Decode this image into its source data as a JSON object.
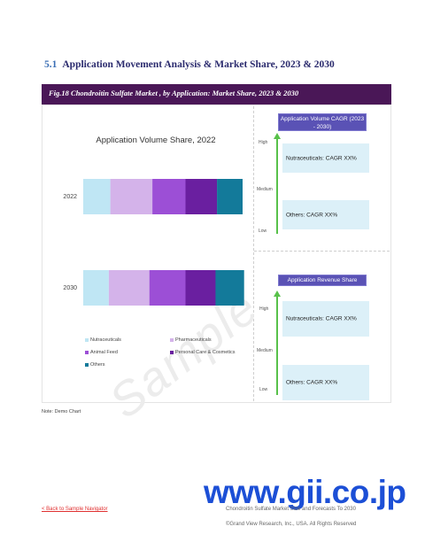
{
  "section": {
    "number": "5.1",
    "title": "Application Movement Analysis & Market Share, 2023 & 2030"
  },
  "figure": {
    "caption": "Fig.18  Chondroitin Sulfate Market , by Application: Market Share, 2023 & 2030"
  },
  "chart_data": {
    "type": "bar",
    "orientation": "horizontal-stacked",
    "title": "Application Volume Share, 2022",
    "categories": [
      "2022",
      "2030"
    ],
    "series": [
      {
        "name": "Nutraceuticals",
        "values": [
          18,
          17
        ],
        "color": "#bfe6f4"
      },
      {
        "name": "Pharmaceuticals",
        "values": [
          28,
          27
        ],
        "color": "#d4b3ea"
      },
      {
        "name": "Animal Feed",
        "values": [
          22,
          24
        ],
        "color": "#9c4fd6"
      },
      {
        "name": "Personal Care & Cosmetics",
        "values": [
          21,
          20
        ],
        "color": "#6a1fa0"
      },
      {
        "name": "Others",
        "values": [
          17,
          19
        ],
        "color": "#137a9a"
      }
    ],
    "xlim": [
      0,
      106
    ],
    "legend_placement": "bottom",
    "grid": false
  },
  "right_panel": {
    "volume": {
      "title": "Application Volume CAGR (2023 - 2030)",
      "levels": [
        "High",
        "Medium",
        "Low"
      ],
      "items": [
        "Nutraceuticals: CAGR XX%",
        "Others: CAGR XX%"
      ]
    },
    "revenue": {
      "title": "Application Revenue Share (2022)",
      "levels": [
        "High",
        "Medium",
        "Low"
      ],
      "items": [
        "Nutraceuticals: CAGR XX%",
        "Others: CAGR XX%"
      ]
    },
    "colors": {
      "pill": "#5a52b5",
      "box": "#dcf0f8",
      "arrow": "#58c14a"
    }
  },
  "note": "Note: Demo Chart",
  "watermark": "Sample",
  "brand": "www.gii.co.jp",
  "footer": {
    "back_link": "< Back to Sample Navigator",
    "title": "Chondroitin Sulfate Market Size and Forecasts To 2030",
    "copyright": "©Grand View Research, Inc., USA. All Rights Reserved"
  }
}
